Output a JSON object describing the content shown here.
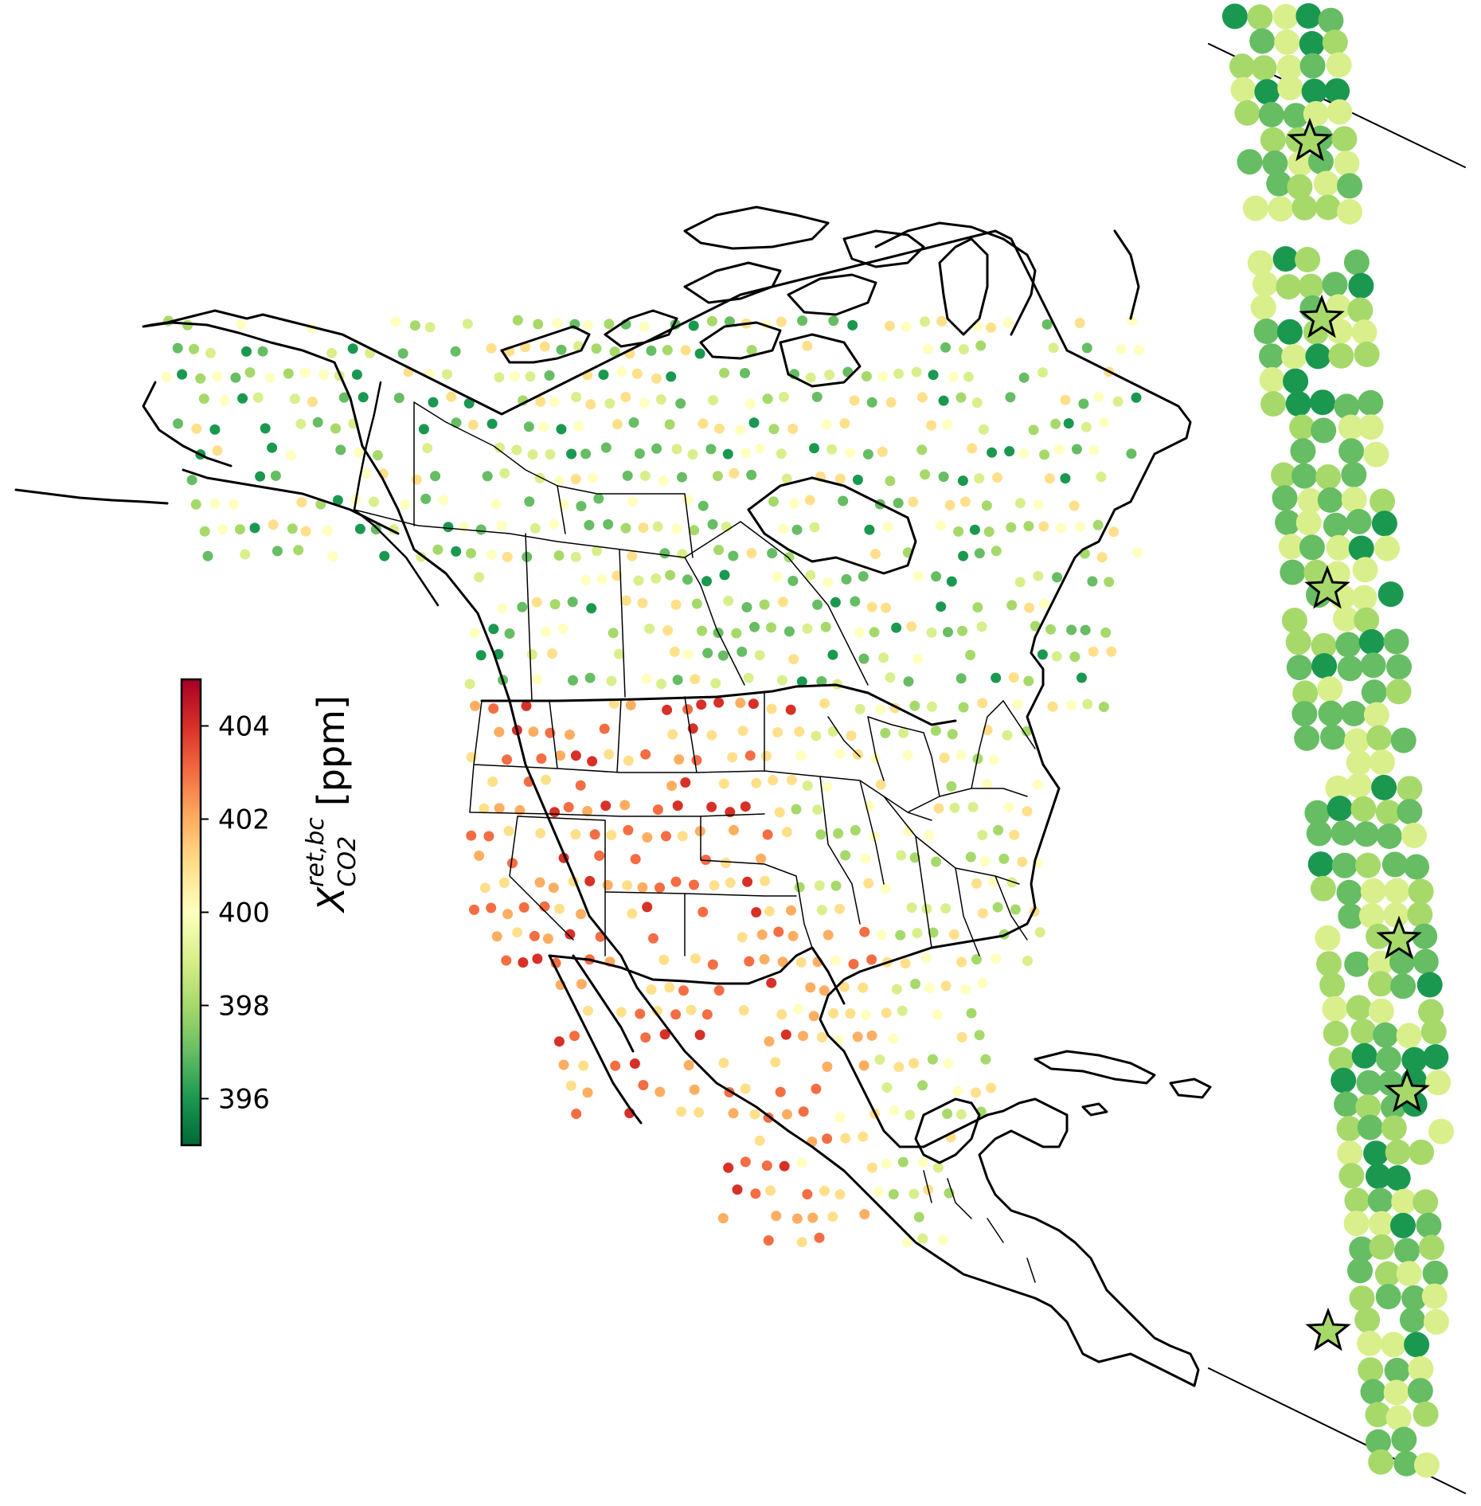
{
  "colorbar": {
    "label_base": "X",
    "label_superscript": "ret,bc",
    "label_subscript": "CO2",
    "label_unit": "[ppm]",
    "range": [
      395,
      405
    ],
    "ticks": [
      "404",
      "402",
      "400",
      "398",
      "396"
    ],
    "tick_values": [
      404,
      402,
      400,
      398,
      396
    ],
    "colormap": "RdYlGn_r",
    "colors": [
      "#006837",
      "#1a9850",
      "#66bd63",
      "#a6d96a",
      "#d9ef8b",
      "#ffffbf",
      "#fee08b",
      "#fdae61",
      "#f46d43",
      "#d73027",
      "#a50026"
    ]
  },
  "map": {
    "region": "North America",
    "boundaries": [
      "coastlines",
      "country borders",
      "US states",
      "Canadian provinces"
    ],
    "marker": "circle"
  },
  "inset": {
    "marker": "star",
    "star_count": 6,
    "dominant_range": "396-399"
  }
}
